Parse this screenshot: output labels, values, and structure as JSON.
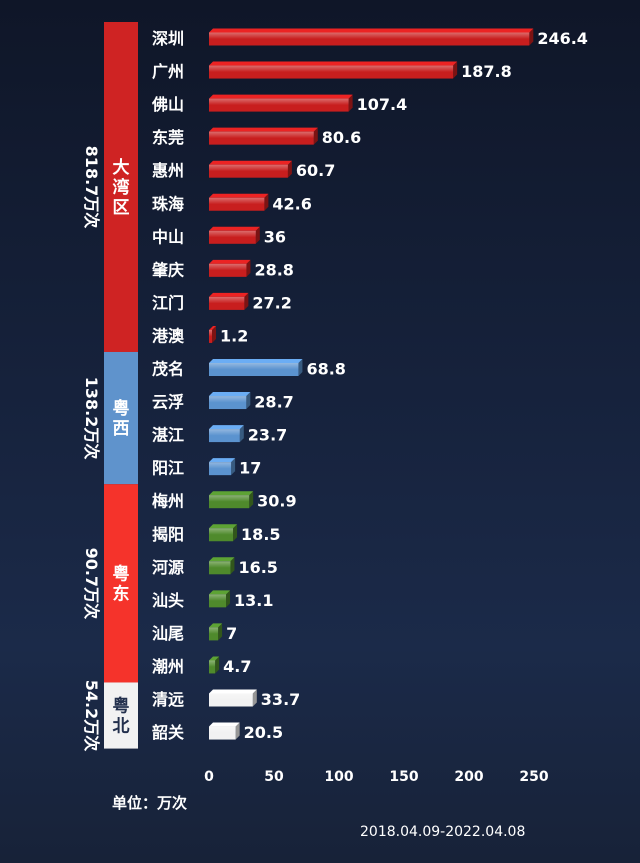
{
  "chart_data": {
    "type": "bar",
    "orientation": "horizontal",
    "categories": [
      "深圳",
      "广州",
      "佛山",
      "东莞",
      "惠州",
      "珠海",
      "中山",
      "肇庆",
      "江门",
      "港澳",
      "茂名",
      "云浮",
      "湛江",
      "阳江",
      "梅州",
      "揭阳",
      "河源",
      "汕头",
      "汕尾",
      "潮州",
      "清远",
      "韶关"
    ],
    "values": [
      246.4,
      187.8,
      107.4,
      80.6,
      60.7,
      42.6,
      36,
      28.8,
      27.2,
      1.2,
      68.8,
      28.7,
      23.7,
      17,
      30.9,
      18.5,
      16.5,
      13.1,
      7,
      4.7,
      33.7,
      20.5
    ],
    "value_labels": [
      "246.4",
      "187.8",
      "107.4",
      "80.6",
      "60.7",
      "42.6",
      "36",
      "28.8",
      "27.2",
      "1.2",
      "68.8",
      "28.7",
      "23.7",
      "17",
      "30.9",
      "18.5",
      "16.5",
      "13.1",
      "7",
      "4.7",
      "33.7",
      "20.5"
    ],
    "xlim": [
      0,
      250
    ],
    "xticks": [
      "0",
      "50",
      "100",
      "150",
      "200",
      "250"
    ],
    "grid": false,
    "groups": [
      {
        "name": "大湾区",
        "total": "818.7万次",
        "count": 10,
        "bar_color": "#c81e1e",
        "band_color": "#cf2323"
      },
      {
        "name": "粤西",
        "total": "138.2万次",
        "count": 4,
        "bar_color": "#5b93cf",
        "band_color": "#5f93cc"
      },
      {
        "name": "粤东",
        "total": "90.7万次",
        "count": 6,
        "bar_color": "#4f8a2c",
        "band_color": "#f5332b"
      },
      {
        "name": "粤北",
        "total": "54.2万次",
        "count": 2,
        "bar_color": "#f2f2f2",
        "band_color": "#f2f2f2",
        "name_color": "#23304d"
      }
    ],
    "unit_label": "单位：万次",
    "date_range": "2018.04.09-2022.04.08"
  }
}
